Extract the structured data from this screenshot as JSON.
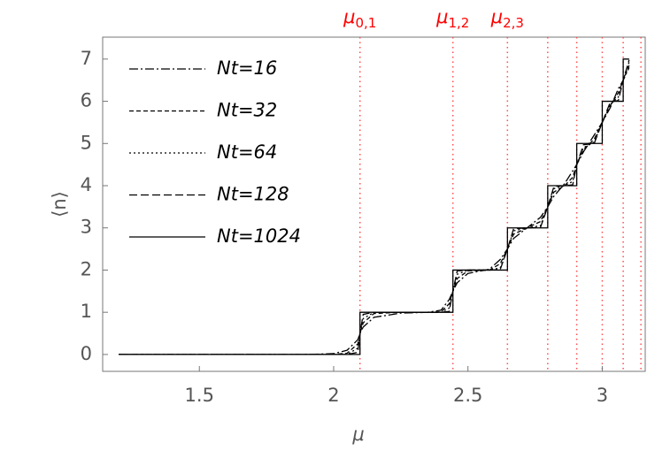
{
  "chart_data": {
    "type": "line",
    "xlabel": "μ",
    "ylabel": "⟨n⟩",
    "xlim": [
      1.14,
      3.16
    ],
    "ylim": [
      -0.4,
      7.52
    ],
    "xticks": [
      1.5,
      2,
      2.5,
      3
    ],
    "yticks": [
      0,
      1,
      2,
      3,
      4,
      5,
      6,
      7
    ],
    "vlines": {
      "color": "#ff4d4d",
      "x": [
        2.098,
        2.444,
        2.647,
        2.797,
        2.905,
        3.0,
        3.078,
        3.144
      ]
    },
    "annotations": [
      {
        "x": 2.098,
        "label": "μ0,1"
      },
      {
        "x": 2.444,
        "label": "μ1,2"
      },
      {
        "x": 2.647,
        "label": "μ2,3"
      }
    ],
    "legend": "upper left",
    "x": [
      1.2,
      1.9,
      2.0,
      2.05,
      2.09,
      2.098,
      2.098,
      2.11,
      2.15,
      2.25,
      2.35,
      2.4,
      2.43,
      2.444,
      2.444,
      2.46,
      2.5,
      2.58,
      2.62,
      2.647,
      2.647,
      2.67,
      2.72,
      2.77,
      2.797,
      2.797,
      2.82,
      2.86,
      2.89,
      2.905,
      2.905,
      2.93,
      2.97,
      3.0,
      3.0,
      3.03,
      3.06,
      3.078,
      3.078,
      3.1
    ],
    "series": [
      {
        "name": "Nt=16",
        "color": "#000000",
        "dash": "10 3 2 3",
        "values": [
          0,
          0,
          0.02,
          0.1,
          0.35,
          0.5,
          0.5,
          0.65,
          0.88,
          0.98,
          1,
          1.05,
          1.3,
          1.5,
          1.5,
          1.7,
          1.92,
          2.02,
          2.25,
          2.5,
          2.5,
          2.75,
          3,
          3.25,
          3.5,
          3.5,
          3.75,
          4.05,
          4.35,
          4.5,
          4.5,
          4.8,
          5.2,
          5.5,
          5.5,
          5.85,
          6.3,
          6.5,
          6.5,
          6.8
        ]
      },
      {
        "name": "Nt=32",
        "color": "#000000",
        "dash": "5 3",
        "values": [
          0,
          0,
          0,
          0.03,
          0.25,
          0.5,
          0.5,
          0.75,
          0.97,
          1,
          1,
          1.01,
          1.2,
          1.5,
          1.5,
          1.8,
          1.98,
          2,
          2.15,
          2.5,
          2.5,
          2.85,
          3,
          3.15,
          3.5,
          3.5,
          3.85,
          4,
          4.2,
          4.5,
          4.5,
          4.85,
          5.1,
          5.5,
          5.5,
          5.9,
          6.2,
          6.5,
          6.5,
          6.85
        ]
      },
      {
        "name": "Nt=64",
        "color": "#000000",
        "dash": "2 3",
        "values": [
          0,
          0,
          0,
          0,
          0.15,
          0.5,
          0.5,
          0.85,
          1,
          1,
          1,
          1,
          1.1,
          1.5,
          1.5,
          1.9,
          2,
          2,
          2.05,
          2.5,
          2.5,
          2.93,
          3,
          3.05,
          3.5,
          3.5,
          3.93,
          4,
          4.1,
          4.5,
          4.5,
          4.9,
          5.03,
          5.5,
          5.5,
          5.93,
          6.1,
          6.5,
          6.5,
          6.93
        ]
      },
      {
        "name": "Nt=128",
        "color": "#000000",
        "dash": "9 4",
        "values": [
          0,
          0,
          0,
          0,
          0.05,
          0.5,
          0.5,
          0.95,
          1,
          1,
          1,
          1,
          1.02,
          1.5,
          1.5,
          1.98,
          2,
          2,
          2.01,
          2.5,
          2.5,
          2.98,
          3,
          3.01,
          3.5,
          3.5,
          3.98,
          4,
          4.02,
          4.5,
          4.5,
          4.97,
          5,
          5.5,
          5.5,
          5.98,
          6.02,
          6.5,
          6.5,
          6.98
        ]
      },
      {
        "name": "Nt=1024",
        "color": "#000000",
        "dash": "none",
        "values": [
          0,
          0,
          0,
          0,
          0,
          0,
          1,
          1,
          1,
          1,
          1,
          1,
          1,
          1,
          2,
          2,
          2,
          2,
          2,
          2,
          3,
          3,
          3,
          3,
          3,
          4,
          4,
          4,
          4,
          4,
          5,
          5,
          5,
          5,
          6,
          6,
          6,
          6,
          7,
          7
        ]
      }
    ]
  }
}
